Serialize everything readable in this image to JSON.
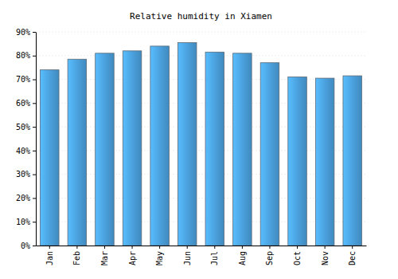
{
  "chart_data": {
    "type": "bar",
    "title": "Relative humidity in Xiamen",
    "categories": [
      "Jan",
      "Feb",
      "Mar",
      "Apr",
      "May",
      "Jun",
      "Jul",
      "Aug",
      "Sep",
      "Oct",
      "Nov",
      "Dec"
    ],
    "values": [
      74,
      78.5,
      81,
      82,
      84,
      85.5,
      81.5,
      81,
      77,
      71,
      70.5,
      71.5
    ],
    "color": "#4a9fdb",
    "ylim": [
      0,
      90
    ],
    "yticks": [
      {
        "value": 0,
        "label": "0%"
      },
      {
        "value": 10,
        "label": "10%"
      },
      {
        "value": 20,
        "label": "20%"
      },
      {
        "value": 30,
        "label": "30%"
      },
      {
        "value": 40,
        "label": "40%"
      },
      {
        "value": 50,
        "label": "50%"
      },
      {
        "value": 60,
        "label": "60%"
      },
      {
        "value": 70,
        "label": "70%"
      },
      {
        "value": 80,
        "label": "80%"
      },
      {
        "value": 90,
        "label": "90%"
      }
    ],
    "grid": true
  }
}
